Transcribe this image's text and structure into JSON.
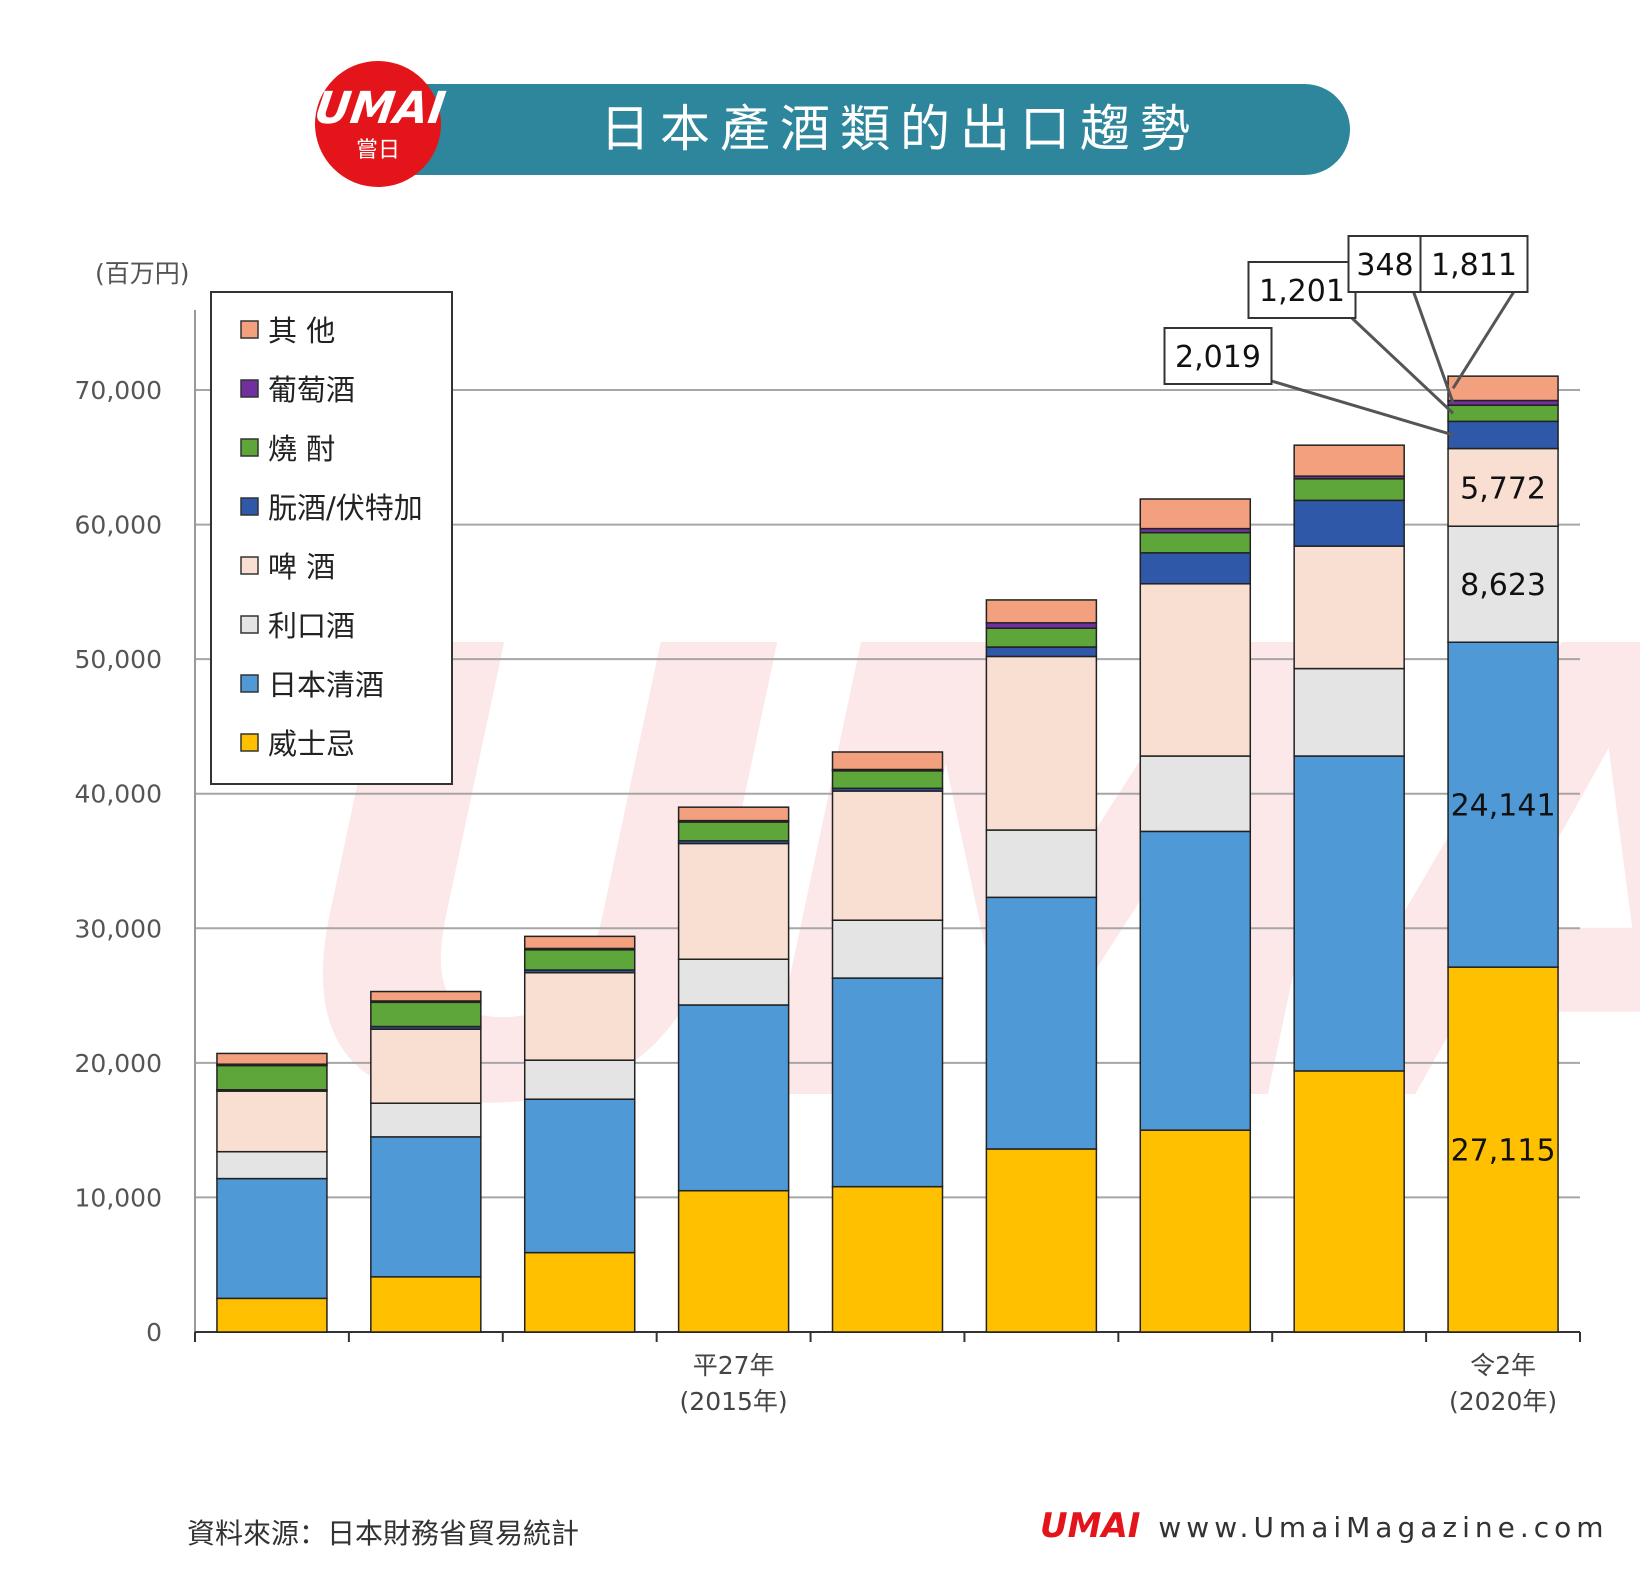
{
  "header": {
    "title": "日本產酒類的出口趨勢",
    "logo_text": "UMAI",
    "logo_sub": "嘗日"
  },
  "footer": {
    "source": "資料來源：日本財務省貿易統計",
    "site": "www.UmaiMagazine.com",
    "logo_text": "UMAI"
  },
  "chart_data": {
    "type": "bar",
    "stacked": true,
    "title": "日本產酒類的出口趨勢",
    "ylabel": "(百万円)",
    "xlabel": "",
    "ylim": [
      0,
      70000
    ],
    "yticks": [
      0,
      10000,
      20000,
      30000,
      40000,
      50000,
      60000,
      70000
    ],
    "ytick_labels": [
      "0",
      "10,000",
      "20,000",
      "30,000",
      "40,000",
      "50,000",
      "60,000",
      "70,000"
    ],
    "grid": true,
    "legend_position": "top-left",
    "categories": [
      "",
      "",
      "",
      "平27年\n(2015年)",
      "",
      "",
      "",
      "",
      "令2年\n(2020年)"
    ],
    "series": [
      {
        "name": "威士忌",
        "color": "#ffc000",
        "values": [
          2500,
          4100,
          5900,
          10500,
          10800,
          13600,
          15000,
          19400,
          27115
        ]
      },
      {
        "name": "日本清酒",
        "color": "#4f9ad6",
        "values": [
          8900,
          10400,
          11400,
          13800,
          15500,
          18700,
          22200,
          23400,
          24141
        ]
      },
      {
        "name": "利口酒",
        "color": "#e4e4e4",
        "values": [
          2000,
          2500,
          2900,
          3400,
          4300,
          5000,
          5600,
          6500,
          8623
        ]
      },
      {
        "name": "啤 酒",
        "color": "#f9dfd2",
        "values": [
          4500,
          5500,
          6500,
          8600,
          9600,
          12900,
          12800,
          9100,
          5772
        ]
      },
      {
        "name": "朊酒/伏特加",
        "color": "#2f58a8",
        "values": [
          100,
          200,
          200,
          200,
          200,
          700,
          2300,
          3400,
          2019
        ]
      },
      {
        "name": "燒 酎",
        "color": "#5ea63a",
        "values": [
          1800,
          1800,
          1500,
          1400,
          1300,
          1400,
          1500,
          1600,
          1201
        ]
      },
      {
        "name": "葡萄酒",
        "color": "#7030a0",
        "values": [
          100,
          100,
          100,
          100,
          100,
          400,
          300,
          200,
          348
        ]
      },
      {
        "name": "其 他",
        "color": "#f2a07e",
        "values": [
          800,
          700,
          900,
          1000,
          1300,
          1700,
          2200,
          2300,
          1811
        ]
      }
    ],
    "annotations": [
      {
        "bar": 8,
        "series": "威士忌",
        "text": "27,115"
      },
      {
        "bar": 8,
        "series": "日本清酒",
        "text": "24,141"
      },
      {
        "bar": 8,
        "series": "利口酒",
        "text": "8,623"
      },
      {
        "bar": 8,
        "series": "啤 酒",
        "text": "5,772"
      },
      {
        "bar": 8,
        "series": "朊酒/伏特加",
        "text": "2,019",
        "callout": true
      },
      {
        "bar": 8,
        "series": "燒 酎",
        "text": "1,201",
        "callout": true
      },
      {
        "bar": 8,
        "series": "葡萄酒",
        "text": "348",
        "callout": true
      },
      {
        "bar": 8,
        "series": "其 他",
        "text": "1,811",
        "callout": true
      }
    ]
  }
}
